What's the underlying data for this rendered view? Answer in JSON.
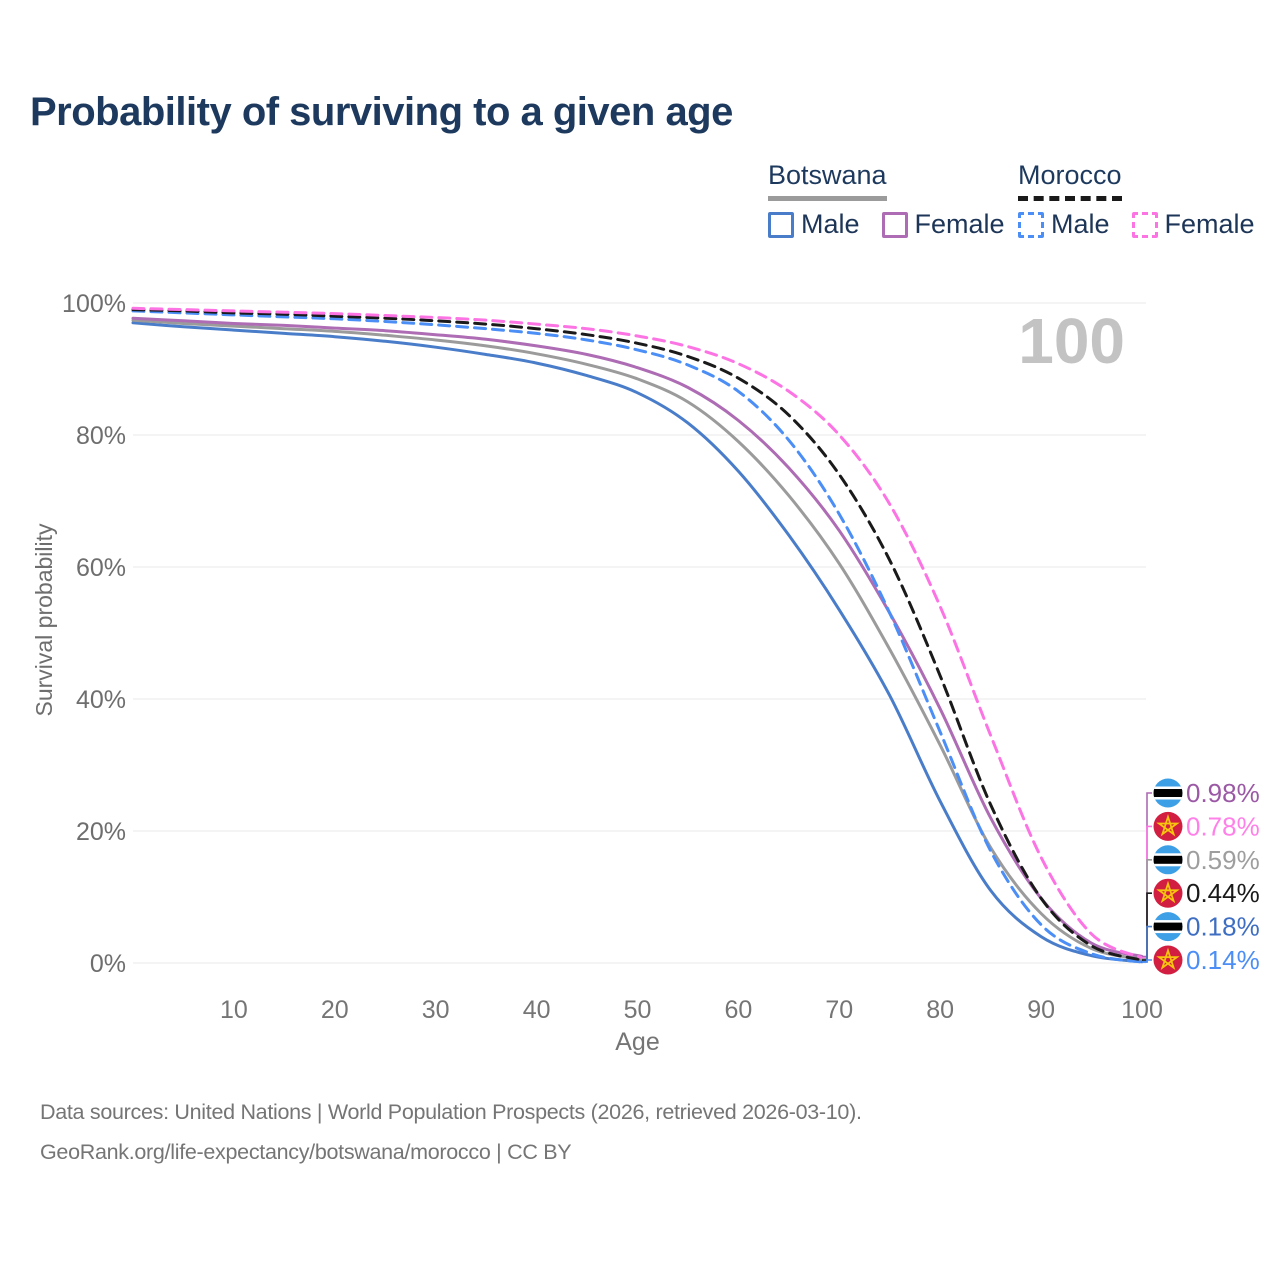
{
  "page": {
    "title": "Probability of surviving to a given age",
    "watermark": "100",
    "source_line1": "Data sources: United Nations | World Population Prospects (2026, retrieved 2026-03-10).",
    "source_line2": "GeoRank.org/life-expectancy/botswana/morocco | CC BY"
  },
  "legend": {
    "groups": [
      {
        "title": "Botswana",
        "underline_color": "#9b9b9b",
        "underline_style": "solid",
        "items": [
          {
            "label": "Male",
            "color": "#4a7dc9",
            "style": "solid"
          },
          {
            "label": "Female",
            "color": "#ad6cb4",
            "style": "solid"
          }
        ]
      },
      {
        "title": "Morocco",
        "underline_color": "#1a1a1a",
        "underline_style": "dashed",
        "items": [
          {
            "label": "Male",
            "color": "#4b8ef5",
            "style": "dashed"
          },
          {
            "label": "Female",
            "color": "#fc74e4",
            "style": "dashed"
          }
        ]
      }
    ]
  },
  "chart_data": {
    "type": "line",
    "title": "Probability of surviving to a given age",
    "xlabel": "Age",
    "ylabel": "Survival probability",
    "xlim": [
      0,
      100
    ],
    "ylim": [
      0,
      100
    ],
    "grid": "horizontal-only",
    "legend_position": "top-right",
    "xticks": [
      10,
      20,
      30,
      40,
      50,
      60,
      70,
      80,
      90,
      100
    ],
    "yticks": [
      0,
      20,
      40,
      60,
      80,
      100
    ],
    "ytick_suffix": "%",
    "x_ages": [
      0,
      5,
      10,
      15,
      20,
      25,
      30,
      35,
      40,
      45,
      50,
      55,
      60,
      65,
      70,
      75,
      80,
      85,
      90,
      95,
      100
    ],
    "series": [
      {
        "id": "bw_male",
        "name": "Botswana Male",
        "country": "Botswana",
        "color": "#4a7dc9",
        "dash": false,
        "values": [
          97.0,
          96.4,
          95.9,
          95.4,
          94.9,
          94.2,
          93.3,
          92.2,
          90.9,
          89.0,
          86.4,
          81.8,
          74.5,
          64.8,
          53.5,
          40.5,
          24.5,
          11.0,
          4.0,
          1.1,
          0.18
        ]
      },
      {
        "id": "bw_all",
        "name": "Botswana Total",
        "country": "Botswana",
        "color": "#9b9b9b",
        "dash": false,
        "values": [
          97.4,
          96.9,
          96.5,
          96.1,
          95.7,
          95.1,
          94.4,
          93.5,
          92.3,
          90.7,
          88.5,
          85.0,
          79.0,
          70.8,
          60.5,
          47.5,
          33.0,
          17.5,
          7.5,
          2.2,
          0.59
        ]
      },
      {
        "id": "bw_female",
        "name": "Botswana Female",
        "country": "Botswana",
        "color": "#ad6cb4",
        "dash": false,
        "values": [
          97.7,
          97.3,
          96.9,
          96.6,
          96.2,
          95.8,
          95.2,
          94.5,
          93.5,
          92.2,
          90.2,
          87.2,
          82.2,
          75.0,
          65.5,
          53.0,
          38.5,
          22.0,
          9.8,
          3.0,
          0.98
        ]
      },
      {
        "id": "ma_male",
        "name": "Morocco Male",
        "country": "Morocco",
        "color": "#4b8ef5",
        "dash": true,
        "values": [
          98.8,
          98.5,
          98.2,
          97.9,
          97.6,
          97.2,
          96.7,
          96.1,
          95.4,
          94.4,
          92.9,
          90.6,
          86.6,
          79.2,
          68.0,
          53.0,
          35.0,
          17.0,
          5.8,
          1.4,
          0.14
        ]
      },
      {
        "id": "ma_all",
        "name": "Morocco Total",
        "country": "Morocco",
        "color": "#1a1a1a",
        "dash": true,
        "values": [
          99.0,
          98.8,
          98.5,
          98.3,
          98.0,
          97.7,
          97.3,
          96.8,
          96.1,
          95.2,
          93.9,
          91.9,
          88.6,
          83.0,
          74.0,
          61.0,
          43.5,
          24.0,
          9.8,
          2.6,
          0.44
        ]
      },
      {
        "id": "ma_female",
        "name": "Morocco Female",
        "country": "Morocco",
        "color": "#fc74e4",
        "dash": true,
        "values": [
          99.2,
          99.0,
          98.8,
          98.6,
          98.4,
          98.1,
          97.8,
          97.4,
          96.8,
          96.1,
          95.0,
          93.4,
          90.8,
          86.6,
          80.0,
          69.5,
          54.0,
          34.5,
          16.0,
          4.4,
          0.78
        ]
      }
    ],
    "end_labels": [
      {
        "flag": "botswana",
        "series": "bw_female",
        "text": "0.98%",
        "color": "#9b59a5"
      },
      {
        "flag": "morocco",
        "series": "ma_female",
        "text": "0.78%",
        "color": "#ff80e8"
      },
      {
        "flag": "botswana",
        "series": "bw_all",
        "text": "0.59%",
        "color": "#9e9e9e"
      },
      {
        "flag": "morocco",
        "series": "ma_all",
        "text": "0.44%",
        "color": "#1a1a1a"
      },
      {
        "flag": "botswana",
        "series": "bw_male",
        "text": "0.18%",
        "color": "#3e6ec2"
      },
      {
        "flag": "morocco",
        "series": "ma_male",
        "text": "0.14%",
        "color": "#4b8ef5"
      }
    ],
    "flag_colors": {
      "botswana": {
        "field": "#3d9fe5",
        "band": "#000000",
        "edge": "#ffffff"
      },
      "morocco": {
        "field": "#d21e40",
        "star": "#f6c50e"
      }
    },
    "axis_text_color": "#757575",
    "grid_color": "#e9e9e9",
    "watermark_color": "#c3c3c3"
  }
}
